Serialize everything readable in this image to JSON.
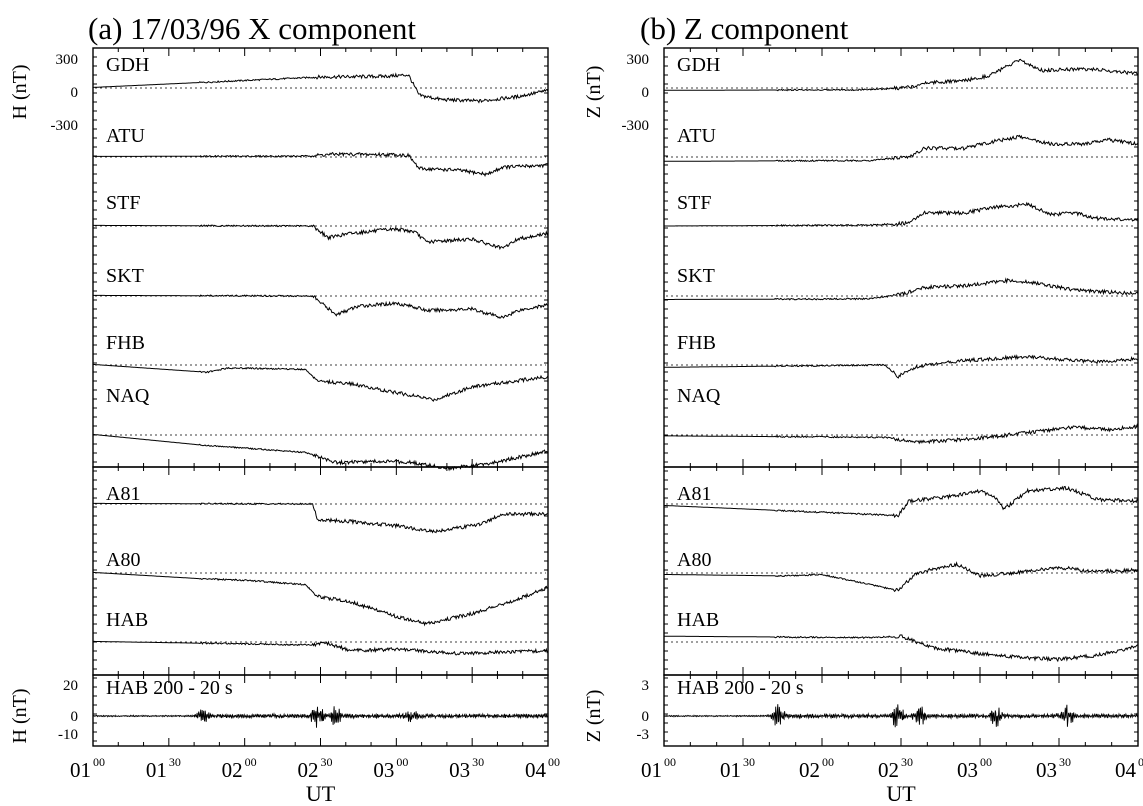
{
  "chart_data": [
    {
      "type": "line",
      "title": "(a) 17/03/96   X component",
      "ylabel": "H (nT)",
      "filtered_ylabel": "H (nT)",
      "xlabel": "UT",
      "x_ticks": [
        {
          "h": "01",
          "m": "00"
        },
        {
          "h": "01",
          "m": "30"
        },
        {
          "h": "02",
          "m": "00"
        },
        {
          "h": "02",
          "m": "30"
        },
        {
          "h": "03",
          "m": "00"
        },
        {
          "h": "03",
          "m": "30"
        },
        {
          "h": "04",
          "m": "00"
        }
      ],
      "y_ticks": [
        "300",
        "0",
        "-300"
      ],
      "filtered_y_ticks": [
        "20",
        "0",
        "-10"
      ],
      "stations": [
        {
          "name": "GDH",
          "group": 0,
          "start": 2,
          "events": [
            {
              "t": 2.5,
              "v": 38
            },
            {
              "t": 2.9,
              "v": 40
            },
            {
              "t": 3.08,
              "v": 45
            },
            {
              "t": 3.15,
              "v": -25
            },
            {
              "t": 3.3,
              "v": -40
            },
            {
              "t": 3.55,
              "v": -45
            },
            {
              "t": 3.8,
              "v": -30
            },
            {
              "t": 4.0,
              "v": -8
            }
          ]
        },
        {
          "name": "ATU",
          "group": 0,
          "start": 2,
          "events": [
            {
              "t": 2.4,
              "v": 3
            },
            {
              "t": 2.6,
              "v": 10
            },
            {
              "t": 3.0,
              "v": 8
            },
            {
              "t": 3.08,
              "v": 6
            },
            {
              "t": 3.15,
              "v": -40
            },
            {
              "t": 3.4,
              "v": -45
            },
            {
              "t": 3.6,
              "v": -60
            },
            {
              "t": 3.7,
              "v": -35
            },
            {
              "t": 4.0,
              "v": -28
            }
          ]
        },
        {
          "name": "STF",
          "group": 0,
          "start": 2,
          "events": [
            {
              "t": 2.45,
              "v": 0
            },
            {
              "t": 2.55,
              "v": -40
            },
            {
              "t": 2.7,
              "v": -25
            },
            {
              "t": 3.0,
              "v": -10
            },
            {
              "t": 3.12,
              "v": -20
            },
            {
              "t": 3.2,
              "v": -55
            },
            {
              "t": 3.5,
              "v": -45
            },
            {
              "t": 3.7,
              "v": -78
            },
            {
              "t": 3.8,
              "v": -45
            },
            {
              "t": 4.0,
              "v": -25
            }
          ]
        },
        {
          "name": "SKT",
          "group": 0,
          "start": 2,
          "events": [
            {
              "t": 2.45,
              "v": 0
            },
            {
              "t": 2.6,
              "v": -65
            },
            {
              "t": 2.75,
              "v": -35
            },
            {
              "t": 3.0,
              "v": -25
            },
            {
              "t": 3.1,
              "v": -35
            },
            {
              "t": 3.2,
              "v": -50
            },
            {
              "t": 3.5,
              "v": -45
            },
            {
              "t": 3.7,
              "v": -75
            },
            {
              "t": 3.8,
              "v": -50
            },
            {
              "t": 4.0,
              "v": -30
            }
          ]
        },
        {
          "name": "FHB",
          "group": 0,
          "start": 2,
          "events": [
            {
              "t": 1.75,
              "v": -25
            },
            {
              "t": 1.9,
              "v": -10
            },
            {
              "t": 2.4,
              "v": -15
            },
            {
              "t": 2.48,
              "v": -55
            },
            {
              "t": 2.7,
              "v": -65
            },
            {
              "t": 2.95,
              "v": -90
            },
            {
              "t": 3.25,
              "v": -120
            },
            {
              "t": 3.5,
              "v": -75
            },
            {
              "t": 4.0,
              "v": -40
            }
          ]
        },
        {
          "name": "NAQ",
          "group": 0,
          "start": 2,
          "events": [
            {
              "t": 1.72,
              "v": -35
            },
            {
              "t": 2.0,
              "v": -45
            },
            {
              "t": 2.4,
              "v": -60
            },
            {
              "t": 2.6,
              "v": -95
            },
            {
              "t": 2.9,
              "v": -90
            },
            {
              "t": 3.1,
              "v": -95
            },
            {
              "t": 3.35,
              "v": -115
            },
            {
              "t": 3.6,
              "v": -100
            },
            {
              "t": 4.0,
              "v": -55
            }
          ]
        },
        {
          "name": "A81",
          "group": 1,
          "start": 2,
          "events": [
            {
              "t": 2.45,
              "v": 0
            },
            {
              "t": 2.48,
              "v": -55
            },
            {
              "t": 2.7,
              "v": -60
            },
            {
              "t": 3.0,
              "v": -75
            },
            {
              "t": 3.25,
              "v": -95
            },
            {
              "t": 3.55,
              "v": -70
            },
            {
              "t": 3.7,
              "v": -35
            },
            {
              "t": 4.0,
              "v": -35
            }
          ]
        },
        {
          "name": "A80",
          "group": 1,
          "start": 2,
          "events": [
            {
              "t": 1.72,
              "v": -20
            },
            {
              "t": 2.0,
              "v": -25
            },
            {
              "t": 2.4,
              "v": -40
            },
            {
              "t": 2.48,
              "v": -80
            },
            {
              "t": 2.7,
              "v": -100
            },
            {
              "t": 3.0,
              "v": -150
            },
            {
              "t": 3.2,
              "v": -175
            },
            {
              "t": 3.5,
              "v": -140
            },
            {
              "t": 3.8,
              "v": -90
            },
            {
              "t": 4.0,
              "v": -50
            }
          ]
        },
        {
          "name": "HAB",
          "group": 1,
          "start": 2,
          "events": [
            {
              "t": 2.4,
              "v": -10
            },
            {
              "t": 2.55,
              "v": -5
            },
            {
              "t": 2.7,
              "v": -30
            },
            {
              "t": 3.0,
              "v": -25
            },
            {
              "t": 3.4,
              "v": -40
            },
            {
              "t": 3.7,
              "v": -35
            },
            {
              "t": 4.0,
              "v": -30
            }
          ]
        }
      ],
      "filtered": {
        "name": "HAB 200 - 20 s",
        "bursts": [
          {
            "t": 1.72,
            "a": 7
          },
          {
            "t": 2.48,
            "a": 18
          },
          {
            "t": 2.6,
            "a": 10
          },
          {
            "t": 3.1,
            "a": 6
          }
        ]
      }
    },
    {
      "type": "line",
      "title": "(b)  Z component",
      "ylabel": "Z (nT)",
      "filtered_ylabel": "Z (nT)",
      "xlabel": "UT",
      "x_ticks": [
        {
          "h": "01",
          "m": "00"
        },
        {
          "h": "01",
          "m": "30"
        },
        {
          "h": "02",
          "m": "00"
        },
        {
          "h": "02",
          "m": "30"
        },
        {
          "h": "03",
          "m": "00"
        },
        {
          "h": "03",
          "m": "30"
        },
        {
          "h": "04",
          "m": "00"
        }
      ],
      "y_ticks": [
        "300",
        "0",
        "-300"
      ],
      "filtered_y_ticks": [
        "3",
        "0",
        "-3"
      ],
      "stations": [
        {
          "name": "GDH",
          "group": 0,
          "start": -8,
          "events": [
            {
              "t": 2.3,
              "v": -6
            },
            {
              "t": 2.55,
              "v": 2
            },
            {
              "t": 2.65,
              "v": 18
            },
            {
              "t": 2.9,
              "v": 25
            },
            {
              "t": 3.05,
              "v": 42
            },
            {
              "t": 3.25,
              "v": 95
            },
            {
              "t": 3.4,
              "v": 60
            },
            {
              "t": 3.55,
              "v": 65
            },
            {
              "t": 3.7,
              "v": 65
            },
            {
              "t": 4.0,
              "v": 50
            }
          ]
        },
        {
          "name": "ATU",
          "group": 0,
          "start": -15,
          "events": [
            {
              "t": 2.3,
              "v": -12
            },
            {
              "t": 2.55,
              "v": 0
            },
            {
              "t": 2.65,
              "v": 30
            },
            {
              "t": 2.9,
              "v": 30
            },
            {
              "t": 3.1,
              "v": 55
            },
            {
              "t": 3.25,
              "v": 70
            },
            {
              "t": 3.45,
              "v": 45
            },
            {
              "t": 3.65,
              "v": 45
            },
            {
              "t": 3.8,
              "v": 60
            },
            {
              "t": 4.0,
              "v": 45
            }
          ]
        },
        {
          "name": "STF",
          "group": 0,
          "start": 0,
          "events": [
            {
              "t": 2.3,
              "v": 3
            },
            {
              "t": 2.55,
              "v": 10
            },
            {
              "t": 2.65,
              "v": 45
            },
            {
              "t": 2.9,
              "v": 45
            },
            {
              "t": 3.1,
              "v": 65
            },
            {
              "t": 3.3,
              "v": 75
            },
            {
              "t": 3.45,
              "v": 40
            },
            {
              "t": 3.6,
              "v": 45
            },
            {
              "t": 3.75,
              "v": 25
            },
            {
              "t": 4.0,
              "v": 20
            }
          ]
        },
        {
          "name": "SKT",
          "group": 0,
          "start": -12,
          "events": [
            {
              "t": 2.3,
              "v": -10
            },
            {
              "t": 2.5,
              "v": 5
            },
            {
              "t": 2.65,
              "v": 30
            },
            {
              "t": 2.9,
              "v": 35
            },
            {
              "t": 3.2,
              "v": 55
            },
            {
              "t": 3.4,
              "v": 40
            },
            {
              "t": 3.6,
              "v": 20
            },
            {
              "t": 4.0,
              "v": 8
            }
          ]
        },
        {
          "name": "FHB",
          "group": 0,
          "start": -8,
          "events": [
            {
              "t": 2.4,
              "v": 0
            },
            {
              "t": 2.48,
              "v": -40
            },
            {
              "t": 2.6,
              "v": -5
            },
            {
              "t": 2.9,
              "v": 15
            },
            {
              "t": 3.3,
              "v": 30
            },
            {
              "t": 3.5,
              "v": 20
            },
            {
              "t": 3.75,
              "v": 10
            },
            {
              "t": 4.0,
              "v": 22
            }
          ]
        },
        {
          "name": "NAQ",
          "group": 0,
          "start": -3,
          "events": [
            {
              "t": 2.4,
              "v": -8
            },
            {
              "t": 2.6,
              "v": -25
            },
            {
              "t": 2.9,
              "v": -15
            },
            {
              "t": 3.1,
              "v": -5
            },
            {
              "t": 3.4,
              "v": 15
            },
            {
              "t": 3.6,
              "v": 28
            },
            {
              "t": 3.8,
              "v": 18
            },
            {
              "t": 4.0,
              "v": 30
            }
          ]
        },
        {
          "name": "A81",
          "group": 1,
          "start": -5,
          "events": [
            {
              "t": 2.48,
              "v": -40
            },
            {
              "t": 2.55,
              "v": 10
            },
            {
              "t": 2.8,
              "v": 25
            },
            {
              "t": 3.0,
              "v": 45
            },
            {
              "t": 3.1,
              "v": 20
            },
            {
              "t": 3.15,
              "v": -20
            },
            {
              "t": 3.3,
              "v": 45
            },
            {
              "t": 3.55,
              "v": 55
            },
            {
              "t": 3.75,
              "v": 15
            },
            {
              "t": 4.0,
              "v": 10
            }
          ]
        },
        {
          "name": "A80",
          "group": 1,
          "start": -5,
          "events": [
            {
              "t": 1.75,
              "v": -10
            },
            {
              "t": 2.0,
              "v": -5
            },
            {
              "t": 2.48,
              "v": -60
            },
            {
              "t": 2.6,
              "v": 0
            },
            {
              "t": 2.85,
              "v": 30
            },
            {
              "t": 3.0,
              "v": -10
            },
            {
              "t": 3.2,
              "v": 0
            },
            {
              "t": 3.5,
              "v": 20
            },
            {
              "t": 3.7,
              "v": 5
            },
            {
              "t": 4.0,
              "v": 10
            }
          ]
        },
        {
          "name": "HAB",
          "group": 1,
          "start": 20,
          "events": [
            {
              "t": 2.3,
              "v": 15
            },
            {
              "t": 2.5,
              "v": 20
            },
            {
              "t": 2.7,
              "v": -20
            },
            {
              "t": 3.0,
              "v": -40
            },
            {
              "t": 3.3,
              "v": -55
            },
            {
              "t": 3.5,
              "v": -60
            },
            {
              "t": 3.75,
              "v": -45
            },
            {
              "t": 4.0,
              "v": -15
            }
          ]
        }
      ],
      "filtered": {
        "name": "HAB 200 - 20 s",
        "bursts": [
          {
            "t": 1.72,
            "a": 12
          },
          {
            "t": 2.48,
            "a": 14
          },
          {
            "t": 2.62,
            "a": 9
          },
          {
            "t": 3.1,
            "a": 9
          },
          {
            "t": 3.55,
            "a": 13
          }
        ]
      }
    }
  ]
}
